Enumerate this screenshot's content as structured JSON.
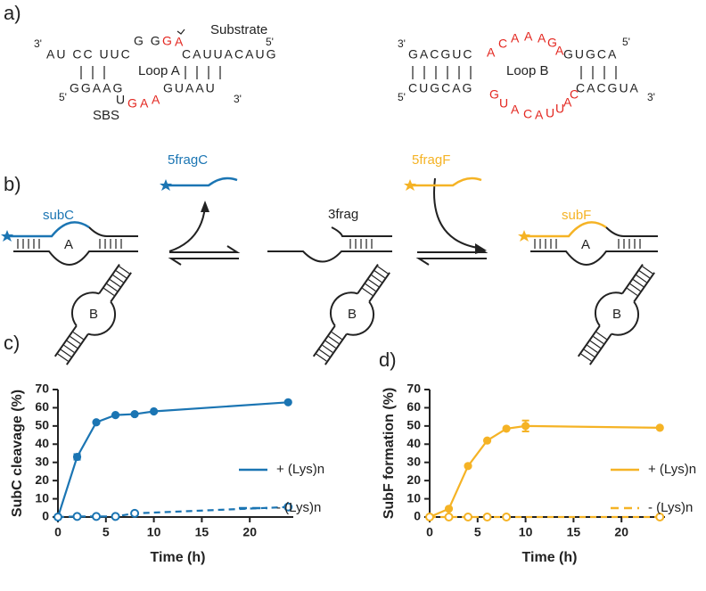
{
  "panel_labels": [
    "a)",
    "b)",
    "c)",
    "d)"
  ],
  "panel_a": {
    "left": {
      "top_end": "3'",
      "top_stem": "AU CC UUC",
      "top_loop_black": "G G",
      "top_loop_red": [
        "G",
        "A"
      ],
      "substrate": "Substrate",
      "top_right": "CAUUACAUG",
      "top_right_end": "5'",
      "loop": "Loop A",
      "bottom_end": "5'",
      "bottom_stem": "GGAAG",
      "bottom_u": "U",
      "bottom_loop_red": [
        "G",
        "A",
        "A"
      ],
      "bottom_right": "GUAAU",
      "bottom_right_end": "3'",
      "sbs": "SBS"
    },
    "right": {
      "top_end": "3'",
      "top_stem": "GACGUC",
      "top_loop_red": [
        "A",
        "C",
        "A",
        "A",
        "A",
        "G",
        "A"
      ],
      "top_right": "GUGCA",
      "top_right_end": "5'",
      "loop": "Loop B",
      "bottom_end": "5'",
      "bottom_stem": "CUGCAG",
      "bottom_loop_red": [
        "G",
        "U",
        "A",
        "C",
        "A",
        "U",
        "U",
        "A",
        "C"
      ],
      "bottom_right": "CACGUA",
      "bottom_right_end": "3'"
    }
  },
  "panel_b": {
    "subC": "subC",
    "fragC": "5fragC",
    "frag3": "3frag",
    "fragF": "5fragF",
    "subF": "subF",
    "loop_labels": [
      "A",
      "A"
    ],
    "stem_labels": [
      "B",
      "B",
      "B"
    ]
  },
  "chart_data": [
    {
      "type": "line",
      "xlabel": "Time (h)",
      "ylabel": "SubC cleavage (%)",
      "xlim": [
        0,
        25
      ],
      "ylim": [
        0,
        70
      ],
      "xticks": [
        0,
        5,
        10,
        15,
        20
      ],
      "yticks": [
        0,
        10,
        20,
        30,
        40,
        50,
        60,
        70
      ],
      "legend": "right",
      "series": [
        {
          "name": "+ (Lys)n",
          "color": "#1b75b3",
          "line_style": "solid",
          "marker": "filled",
          "x": [
            0,
            2,
            4,
            6,
            8,
            10,
            24
          ],
          "values": [
            0,
            33,
            52,
            56,
            56.5,
            58,
            63
          ],
          "errors": [
            null,
            1.5,
            null,
            null,
            null,
            null,
            null
          ]
        },
        {
          "name": "- (Lys)n",
          "color": "#1b75b3",
          "line_style": "dashed",
          "marker": "open",
          "x": [
            0,
            2,
            4,
            6,
            8,
            24
          ],
          "values": [
            0,
            0.3,
            0.3,
            0.3,
            2,
            5.5
          ]
        }
      ]
    },
    {
      "type": "line",
      "xlabel": "Time (h)",
      "ylabel": "SubF formation (%)",
      "xlim": [
        0,
        25
      ],
      "ylim": [
        0,
        70
      ],
      "xticks": [
        0,
        5,
        10,
        15,
        20
      ],
      "yticks": [
        0,
        10,
        20,
        30,
        40,
        50,
        60,
        70
      ],
      "legend": "right",
      "series": [
        {
          "name": "+ (Lys)n",
          "color": "#f5b325",
          "line_style": "solid",
          "marker": "filled",
          "x": [
            0,
            2,
            4,
            6,
            8,
            10,
            24
          ],
          "values": [
            0,
            4.5,
            28,
            42,
            48.5,
            50,
            49
          ],
          "errors": [
            null,
            null,
            null,
            null,
            null,
            3,
            null
          ]
        },
        {
          "name": "- (Lys)n",
          "color": "#f5b325",
          "line_style": "dashed",
          "marker": "open",
          "x": [
            0,
            2,
            4,
            6,
            8,
            24
          ],
          "values": [
            0,
            0,
            0,
            0,
            0,
            0
          ]
        }
      ]
    }
  ]
}
